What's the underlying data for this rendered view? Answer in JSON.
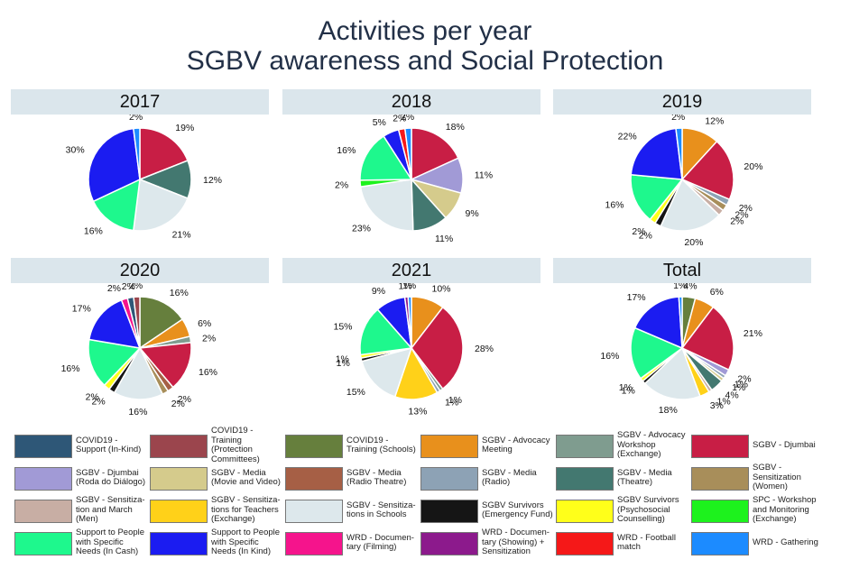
{
  "title_line1": "Activities per year",
  "title_line2": "SGBV awareness and Social Protection",
  "legend": [
    {
      "key": "c1",
      "label": "COVID19 - Support (In-Kind)",
      "color": "#2e5777"
    },
    {
      "key": "c2",
      "label": "COVID19 - Training (Protection Committees)",
      "color": "#9b454d"
    },
    {
      "key": "c3",
      "label": "COVID19 - Training (Schools)",
      "color": "#667f3d"
    },
    {
      "key": "c4",
      "label": "SGBV - Advocacy Meeting",
      "color": "#e8901c"
    },
    {
      "key": "c5",
      "label": "SGBV - Advocacy Workshop (Exchange)",
      "color": "#7f9c8f"
    },
    {
      "key": "c6",
      "label": "SGBV - Djumbai",
      "color": "#c81e45"
    },
    {
      "key": "c7",
      "label": "SGBV - Djumbai (Roda do Diálogo)",
      "color": "#a19ad6"
    },
    {
      "key": "c8",
      "label": "SGBV - Media (Movie and Video)",
      "color": "#d5cb8c"
    },
    {
      "key": "c9",
      "label": "SGBV - Media (Radio Theatre)",
      "color": "#a65f45"
    },
    {
      "key": "c10",
      "label": "SGBV - Media (Radio)",
      "color": "#8da2b5"
    },
    {
      "key": "c11",
      "label": "SGBV - Media (Theatre)",
      "color": "#437870"
    },
    {
      "key": "c12",
      "label": "SGBV - Sensitization (Women)",
      "color": "#a88e5a"
    },
    {
      "key": "c13",
      "label": "SGBV - Sensitiza-tion and March (Men)",
      "color": "#c8aea4"
    },
    {
      "key": "c14",
      "label": "SGBV - Sensitiza-tions for Teachers (Exchange)",
      "color": "#ffd119"
    },
    {
      "key": "c15",
      "label": "SGBV - Sensitiza-tions in Schools",
      "color": "#dde8ec"
    },
    {
      "key": "c16",
      "label": "SGBV Survivors (Emergency Fund)",
      "color": "#151515"
    },
    {
      "key": "c17",
      "label": "SGBV Survivors (Psychosocial Counselling)",
      "color": "#ffff1a"
    },
    {
      "key": "c18",
      "label": "SPC - Workshop and Monitoring (Exchange)",
      "color": "#1df21d"
    },
    {
      "key": "c19",
      "label": "Support to People with Specific Needs (In Cash)",
      "color": "#1ef88d"
    },
    {
      "key": "c20",
      "label": "Support to People with Specific Needs (In Kind)",
      "color": "#1b1cf1"
    },
    {
      "key": "c21",
      "label": "WRD - Documen-tary (Filming)",
      "color": "#f5148c"
    },
    {
      "key": "c22",
      "label": "WRD - Documen-tary (Showing) + Sensitization",
      "color": "#8c1a8c"
    },
    {
      "key": "c23",
      "label": "WRD - Football match",
      "color": "#f51818"
    },
    {
      "key": "c24",
      "label": "WRD - Gathering",
      "color": "#1c8bff"
    }
  ],
  "chart_data": [
    {
      "type": "pie",
      "title": "2017",
      "slices": [
        {
          "key": "c6",
          "value": 19,
          "label": "19%"
        },
        {
          "key": "c11",
          "value": 12,
          "label": "12%"
        },
        {
          "key": "c15",
          "value": 21,
          "label": "21%"
        },
        {
          "key": "c19",
          "value": 16,
          "label": "16%"
        },
        {
          "key": "c20",
          "value": 30,
          "label": "30%"
        },
        {
          "key": "c24",
          "value": 2,
          "label": "2%"
        }
      ]
    },
    {
      "type": "pie",
      "title": "2018",
      "slices": [
        {
          "key": "c6",
          "value": 18,
          "label": "18%"
        },
        {
          "key": "c7",
          "value": 11,
          "label": "11%"
        },
        {
          "key": "c8",
          "value": 9,
          "label": "9%"
        },
        {
          "key": "c11",
          "value": 11,
          "label": "11%"
        },
        {
          "key": "c15",
          "value": 23,
          "label": "23%"
        },
        {
          "key": "c18",
          "value": 2,
          "label": "2%"
        },
        {
          "key": "c19",
          "value": 16,
          "label": "16%"
        },
        {
          "key": "c20",
          "value": 5,
          "label": "5%"
        },
        {
          "key": "c23",
          "value": 2,
          "label": "2%"
        },
        {
          "key": "c24",
          "value": 2,
          "label": "2%"
        }
      ]
    },
    {
      "type": "pie",
      "title": "2019",
      "slices": [
        {
          "key": "c4",
          "value": 12,
          "label": "12%"
        },
        {
          "key": "c6",
          "value": 20,
          "label": "20%"
        },
        {
          "key": "c10",
          "value": 2,
          "label": "2%"
        },
        {
          "key": "c12",
          "value": 2,
          "label": "2%"
        },
        {
          "key": "c13",
          "value": 2,
          "label": "2%"
        },
        {
          "key": "c15",
          "value": 20,
          "label": "20%"
        },
        {
          "key": "c16",
          "value": 2,
          "label": "2%"
        },
        {
          "key": "c17",
          "value": 2,
          "label": "2%"
        },
        {
          "key": "c19",
          "value": 16,
          "label": "16%"
        },
        {
          "key": "c20",
          "value": 22,
          "label": "22%"
        },
        {
          "key": "c24",
          "value": 2,
          "label": "2%"
        }
      ]
    },
    {
      "type": "pie",
      "title": "2020",
      "slices": [
        {
          "key": "c3",
          "value": 16,
          "label": "16%"
        },
        {
          "key": "c4",
          "value": 6,
          "label": "6%"
        },
        {
          "key": "c5",
          "value": 2,
          "label": "2%"
        },
        {
          "key": "c6",
          "value": 16,
          "label": "16%"
        },
        {
          "key": "c9",
          "value": 2,
          "label": "2%"
        },
        {
          "key": "c12",
          "value": 2,
          "label": "2%"
        },
        {
          "key": "c15",
          "value": 16,
          "label": "16%"
        },
        {
          "key": "c16",
          "value": 2,
          "label": "2%"
        },
        {
          "key": "c17",
          "value": 2,
          "label": "2%"
        },
        {
          "key": "c19",
          "value": 16,
          "label": "16%"
        },
        {
          "key": "c20",
          "value": 17,
          "label": "17%"
        },
        {
          "key": "c21",
          "value": 2,
          "label": "2%"
        },
        {
          "key": "c1",
          "value": 2,
          "label": "2%"
        },
        {
          "key": "c2",
          "value": 2,
          "label": "2%"
        }
      ]
    },
    {
      "type": "pie",
      "title": "2021",
      "slices": [
        {
          "key": "c4",
          "value": 10,
          "label": "10%"
        },
        {
          "key": "c6",
          "value": 28,
          "label": "28%"
        },
        {
          "key": "c5",
          "value": 1,
          "label": "1%"
        },
        {
          "key": "c10",
          "value": 1,
          "label": "1%"
        },
        {
          "key": "c14",
          "value": 13,
          "label": "13%"
        },
        {
          "key": "c15",
          "value": 15,
          "label": "15%"
        },
        {
          "key": "c16",
          "value": 1,
          "label": "1%"
        },
        {
          "key": "c17",
          "value": 1,
          "label": "1%"
        },
        {
          "key": "c19",
          "value": 15,
          "label": "15%"
        },
        {
          "key": "c20",
          "value": 9,
          "label": "9%"
        },
        {
          "key": "c22",
          "value": 1,
          "label": "1%"
        },
        {
          "key": "c24",
          "value": 1,
          "label": "1%"
        }
      ]
    },
    {
      "type": "pie",
      "title": "Total",
      "slices": [
        {
          "key": "c3",
          "value": 4,
          "label": "4%"
        },
        {
          "key": "c4",
          "value": 6,
          "label": "6%"
        },
        {
          "key": "c6",
          "value": 21,
          "label": "21%"
        },
        {
          "key": "c7",
          "value": 2,
          "label": "2%"
        },
        {
          "key": "c10",
          "value": 1,
          "label": "1%"
        },
        {
          "key": "c8",
          "value": 1,
          "label": "1%"
        },
        {
          "key": "c11",
          "value": 4,
          "label": "4%"
        },
        {
          "key": "c13",
          "value": 1,
          "label": "1%"
        },
        {
          "key": "c14",
          "value": 3,
          "label": "3%"
        },
        {
          "key": "c15",
          "value": 18,
          "label": "18%"
        },
        {
          "key": "c16",
          "value": 1,
          "label": "1%"
        },
        {
          "key": "c17",
          "value": 1,
          "label": "1%"
        },
        {
          "key": "c19",
          "value": 16,
          "label": "16%"
        },
        {
          "key": "c20",
          "value": 17,
          "label": "17%"
        },
        {
          "key": "c24",
          "value": 1,
          "label": "1%"
        }
      ]
    }
  ]
}
